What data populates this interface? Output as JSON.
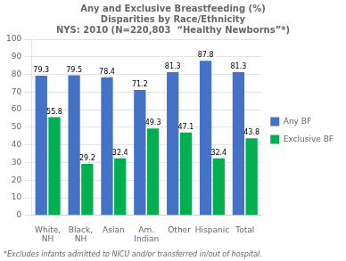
{
  "chart_data": {
    "type": "bar",
    "title": "Any and Exclusive Breastfeeding (%)\nDisparities by Race/Ethnicity\nNYS: 2010 (N=220,803  “Healthy Newborns”*)",
    "categories": [
      "White,\nNH",
      "Black,\nNH",
      "Asian",
      "Am.\nIndian",
      "Other",
      "Hispanic",
      "Total"
    ],
    "series": [
      {
        "name": "Any BF",
        "color": "#4472C4",
        "values": [
          79.3,
          79.5,
          78.4,
          71.2,
          81.3,
          87.8,
          81.3
        ]
      },
      {
        "name": "Exclusive BF",
        "color": "#00B050",
        "values": [
          55.8,
          29.2,
          32.4,
          49.3,
          47.1,
          32.4,
          43.8
        ]
      }
    ],
    "ylim": [
      0,
      100
    ],
    "yticks": [
      0,
      10,
      20,
      30,
      40,
      50,
      60,
      70,
      80,
      90,
      100
    ],
    "grid": true,
    "legend": "right",
    "data_labels": true,
    "annotations": [
      "*Excludes infants admitted to NICU and/or transferred in/out of hospital."
    ]
  }
}
